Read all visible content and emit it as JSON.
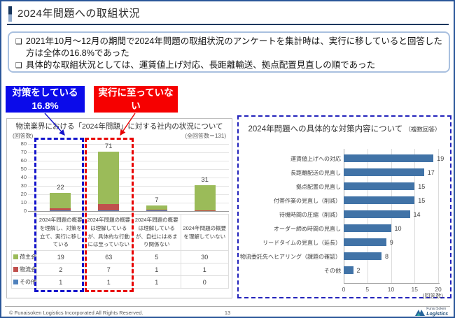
{
  "header": {
    "title": "2024年問題への取組状況"
  },
  "summary": {
    "bullet_glyph": "❑",
    "bullets": [
      "2021年10月～12月の期間で2024年問題の取組状況のアンケートを集計時は、実行に移していると回答した方は全体の16.8%であった",
      "具体的な取組状況としては、運賃値上げ対応、長距離輸送、拠点配置見直しの順であった"
    ]
  },
  "callouts": [
    {
      "line1": "対策をしている",
      "line2": "16.8%",
      "color": "#0b0bea"
    },
    {
      "line1": "実行に至っていない",
      "line2": "約54.2%",
      "color": "#f60000"
    }
  ],
  "chart_data": [
    {
      "type": "bar",
      "stacked": true,
      "title": "物流業界における「2024年問題」に対する社内の状況について",
      "y_note": "(回答数)",
      "total_note": "(全回答数＝131)",
      "ylim": [
        0,
        80
      ],
      "ytick_step": 10,
      "grid": true,
      "categories": [
        "2024年問題の概要を理解し、対策を立て、実行に移している",
        "2024年問題の概要は理解しているが、具体的な行動には至っていない",
        "2024年問題の概要は理解しているが、自社にはあまり関係ない",
        "2024年問題の概要を理解していない"
      ],
      "series": [
        {
          "name": "荷主会社",
          "color": "#9bbb59",
          "values": [
            19,
            63,
            5,
            30
          ]
        },
        {
          "name": "物流会社",
          "color": "#c0504d",
          "values": [
            2,
            7,
            1,
            1
          ]
        },
        {
          "name": "その他",
          "color": "#4f81bd",
          "values": [
            1,
            1,
            1,
            0
          ]
        }
      ],
      "totals": [
        22,
        71,
        7,
        31
      ],
      "legend_position": "table-left"
    },
    {
      "type": "bar",
      "orientation": "horizontal",
      "title": "2024年問題への具体的な対策内容について",
      "subtitle": "（複数回答）",
      "x_note": "(回答数)",
      "xlim": [
        0,
        20
      ],
      "xticks": [
        0,
        5,
        10,
        15,
        20
      ],
      "grid": true,
      "bar_color": "#4173a7",
      "categories": [
        "運賃値上げへの対応",
        "長距離配送の見直し",
        "拠点配置の見直し",
        "付帯作業の見直し（削減）",
        "待機時間の圧縮（削減）",
        "オーダー締め時間の見直し",
        "リードタイムの見直し（延長）",
        "物流委託先へヒアリング（課題の確認）",
        "その他"
      ],
      "values": [
        19,
        17,
        15,
        15,
        14,
        10,
        9,
        8,
        2
      ]
    }
  ],
  "footer": {
    "copyright": "© Funaisoken Logistics Incorporated All Rights Reserved.",
    "page": "13",
    "logo_line1": "Funai Soken",
    "logo_line2": "Logistics"
  }
}
